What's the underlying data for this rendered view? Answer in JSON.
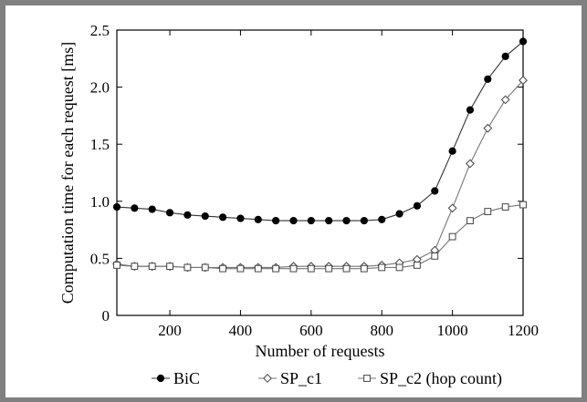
{
  "chart_data": {
    "type": "line",
    "xlabel": "Number of requests",
    "ylabel": "Computation time for each request [ms]",
    "xlim": [
      50,
      1200
    ],
    "ylim": [
      0,
      2.5
    ],
    "xticks": [
      200,
      400,
      600,
      800,
      1000,
      1200
    ],
    "yticks": [
      0,
      0.5,
      1.0,
      1.5,
      2.0,
      2.5
    ],
    "xtick_labels": [
      "200",
      "400",
      "600",
      "800",
      "1000",
      "1200"
    ],
    "ytick_labels": [
      "0",
      "0.5",
      "1.0",
      "1.5",
      "2.0",
      "2.5"
    ],
    "grid": false,
    "legend_position": "bottom",
    "x": [
      50,
      100,
      150,
      200,
      250,
      300,
      350,
      400,
      450,
      500,
      550,
      600,
      650,
      700,
      750,
      800,
      850,
      900,
      950,
      1000,
      1050,
      1100,
      1150,
      1200
    ],
    "series": [
      {
        "name": "BiC",
        "marker": "filled-circle",
        "values": [
          0.95,
          0.94,
          0.93,
          0.9,
          0.88,
          0.87,
          0.86,
          0.85,
          0.84,
          0.83,
          0.83,
          0.83,
          0.83,
          0.83,
          0.83,
          0.84,
          0.89,
          0.96,
          1.09,
          1.44,
          1.8,
          2.07,
          2.27,
          2.4
        ]
      },
      {
        "name": "SP_c1",
        "marker": "open-diamond",
        "values": [
          0.45,
          0.43,
          0.43,
          0.43,
          0.42,
          0.42,
          0.42,
          0.42,
          0.42,
          0.42,
          0.43,
          0.43,
          0.43,
          0.43,
          0.43,
          0.44,
          0.46,
          0.49,
          0.57,
          0.94,
          1.33,
          1.64,
          1.89,
          2.06
        ]
      },
      {
        "name": "SP_c2 (hop count)",
        "marker": "open-square",
        "values": [
          0.44,
          0.43,
          0.43,
          0.43,
          0.42,
          0.42,
          0.41,
          0.41,
          0.41,
          0.41,
          0.41,
          0.41,
          0.41,
          0.41,
          0.41,
          0.42,
          0.42,
          0.44,
          0.52,
          0.69,
          0.83,
          0.91,
          0.95,
          0.97
        ]
      }
    ]
  }
}
